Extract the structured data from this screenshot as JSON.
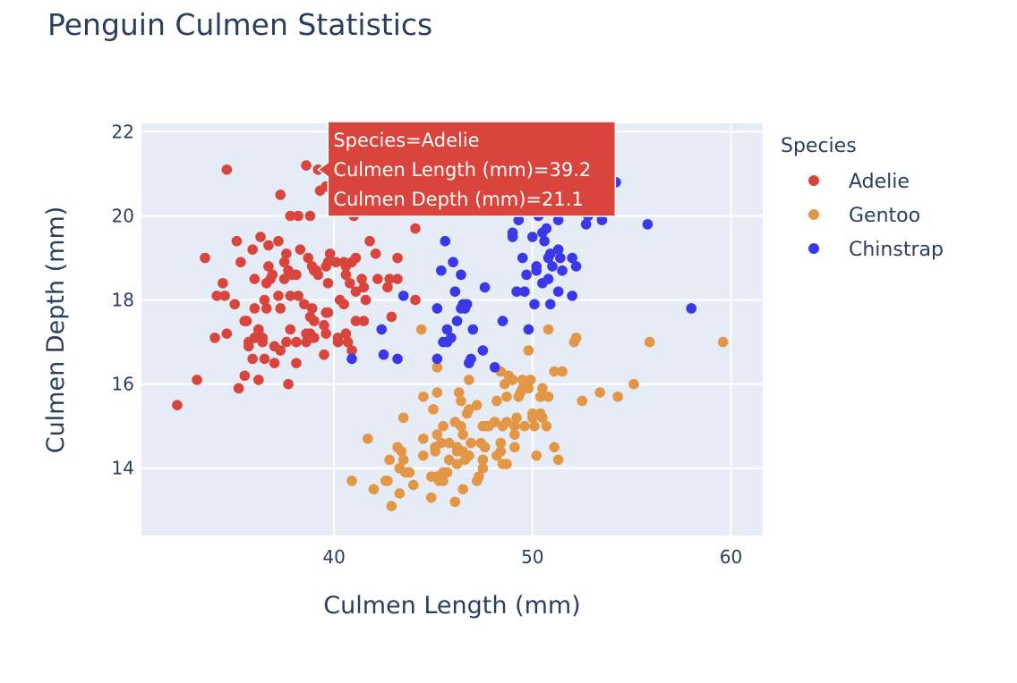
{
  "chart_data": {
    "type": "scatter",
    "title": "Penguin Culmen Statistics",
    "xlabel": "Culmen Length (mm)",
    "ylabel": "Culmen Depth (mm)",
    "xlim": [
      30.3,
      61.6
    ],
    "ylim": [
      12.4,
      22.2
    ],
    "x_ticks": [
      40,
      50,
      60
    ],
    "y_ticks": [
      14,
      16,
      18,
      20,
      22
    ],
    "grid": true,
    "legend": {
      "title": "Species",
      "placement": "right"
    },
    "series": [
      {
        "name": "Adelie",
        "color": "#d9443c",
        "points": [
          [
            32.1,
            15.5
          ],
          [
            33.1,
            16.1
          ],
          [
            33.5,
            19.0
          ],
          [
            34.0,
            17.1
          ],
          [
            34.1,
            18.1
          ],
          [
            34.4,
            18.4
          ],
          [
            34.5,
            18.1
          ],
          [
            34.6,
            21.1
          ],
          [
            34.6,
            17.2
          ],
          [
            35.0,
            17.9
          ],
          [
            35.1,
            19.4
          ],
          [
            35.2,
            15.9
          ],
          [
            35.3,
            18.9
          ],
          [
            35.5,
            16.2
          ],
          [
            35.5,
            17.5
          ],
          [
            35.6,
            17.5
          ],
          [
            35.7,
            16.9
          ],
          [
            35.7,
            17.0
          ],
          [
            35.9,
            16.6
          ],
          [
            35.9,
            19.2
          ],
          [
            36.0,
            17.1
          ],
          [
            36.0,
            17.8
          ],
          [
            36.0,
            18.5
          ],
          [
            36.2,
            16.1
          ],
          [
            36.2,
            17.2
          ],
          [
            36.2,
            17.3
          ],
          [
            36.3,
            19.5
          ],
          [
            36.4,
            17.0
          ],
          [
            36.4,
            17.1
          ],
          [
            36.5,
            16.6
          ],
          [
            36.5,
            18.0
          ],
          [
            36.6,
            17.8
          ],
          [
            36.6,
            18.4
          ],
          [
            36.7,
            18.8
          ],
          [
            36.7,
            19.3
          ],
          [
            36.8,
            18.5
          ],
          [
            36.9,
            18.6
          ],
          [
            37.0,
            16.5
          ],
          [
            37.0,
            16.9
          ],
          [
            37.2,
            18.1
          ],
          [
            37.2,
            19.4
          ],
          [
            37.3,
            16.8
          ],
          [
            37.3,
            17.8
          ],
          [
            37.3,
            20.5
          ],
          [
            37.5,
            18.5
          ],
          [
            37.5,
            18.9
          ],
          [
            37.6,
            17.0
          ],
          [
            37.6,
            19.1
          ],
          [
            37.7,
            16.0
          ],
          [
            37.7,
            18.7
          ],
          [
            37.8,
            17.3
          ],
          [
            37.8,
            18.1
          ],
          [
            37.8,
            20.0
          ],
          [
            37.9,
            18.6
          ],
          [
            38.1,
            16.5
          ],
          [
            38.1,
            17.0
          ],
          [
            38.1,
            18.6
          ],
          [
            38.2,
            18.1
          ],
          [
            38.2,
            20.0
          ],
          [
            38.3,
            19.2
          ],
          [
            38.5,
            17.9
          ],
          [
            38.6,
            17.0
          ],
          [
            38.6,
            17.2
          ],
          [
            38.6,
            21.2
          ],
          [
            38.7,
            19.0
          ],
          [
            38.8,
            17.2
          ],
          [
            38.8,
            17.6
          ],
          [
            38.8,
            20.0
          ],
          [
            38.9,
            17.8
          ],
          [
            38.9,
            18.8
          ],
          [
            39.0,
            17.1
          ],
          [
            39.0,
            17.5
          ],
          [
            39.0,
            18.7
          ],
          [
            39.1,
            18.7
          ],
          [
            39.2,
            18.6
          ],
          [
            39.2,
            21.1
          ],
          [
            39.3,
            20.6
          ],
          [
            39.5,
            16.7
          ],
          [
            39.5,
            17.4
          ],
          [
            39.6,
            17.2
          ],
          [
            39.6,
            17.7
          ],
          [
            39.6,
            18.8
          ],
          [
            39.6,
            20.7
          ],
          [
            39.7,
            17.7
          ],
          [
            39.7,
            18.4
          ],
          [
            39.7,
            18.9
          ],
          [
            39.8,
            19.1
          ],
          [
            40.1,
            18.9
          ],
          [
            40.2,
            17.0
          ],
          [
            40.2,
            17.1
          ],
          [
            40.2,
            20.1
          ],
          [
            40.3,
            18.0
          ],
          [
            40.5,
            17.9
          ],
          [
            40.5,
            18.9
          ],
          [
            40.6,
            17.2
          ],
          [
            40.6,
            18.6
          ],
          [
            40.6,
            18.8
          ],
          [
            40.7,
            17.0
          ],
          [
            40.8,
            18.4
          ],
          [
            40.9,
            16.8
          ],
          [
            40.9,
            18.9
          ],
          [
            41.0,
            20.0
          ],
          [
            41.1,
            17.5
          ],
          [
            41.1,
            18.2
          ],
          [
            41.1,
            19.0
          ],
          [
            41.3,
            20.3
          ],
          [
            41.4,
            18.5
          ],
          [
            41.5,
            17.5
          ],
          [
            41.5,
            18.3
          ],
          [
            41.6,
            18.0
          ],
          [
            41.8,
            19.4
          ],
          [
            42.0,
            20.2
          ],
          [
            42.1,
            19.1
          ],
          [
            42.2,
            18.5
          ],
          [
            42.3,
            21.2
          ],
          [
            42.5,
            20.7
          ],
          [
            42.7,
            18.3
          ],
          [
            42.8,
            18.5
          ],
          [
            42.9,
            17.6
          ],
          [
            43.2,
            18.5
          ],
          [
            43.2,
            19.0
          ],
          [
            44.1,
            18.0
          ],
          [
            44.1,
            19.7
          ],
          [
            45.6,
            20.3
          ],
          [
            46.0,
            21.5
          ]
        ]
      },
      {
        "name": "Gentoo",
        "color": "#e29646",
        "points": [
          [
            40.9,
            13.7
          ],
          [
            41.7,
            14.7
          ],
          [
            42.0,
            13.5
          ],
          [
            42.6,
            13.7
          ],
          [
            42.7,
            13.7
          ],
          [
            42.8,
            14.2
          ],
          [
            42.9,
            13.1
          ],
          [
            43.2,
            14.5
          ],
          [
            43.3,
            13.4
          ],
          [
            43.3,
            14.0
          ],
          [
            43.4,
            14.4
          ],
          [
            43.5,
            14.2
          ],
          [
            43.5,
            15.2
          ],
          [
            43.6,
            13.9
          ],
          [
            43.8,
            13.9
          ],
          [
            44.0,
            13.6
          ],
          [
            44.4,
            17.3
          ],
          [
            44.5,
            14.3
          ],
          [
            44.5,
            14.7
          ],
          [
            44.5,
            15.7
          ],
          [
            44.9,
            13.3
          ],
          [
            44.9,
            13.8
          ],
          [
            45.0,
            15.4
          ],
          [
            45.1,
            14.4
          ],
          [
            45.1,
            14.5
          ],
          [
            45.2,
            13.8
          ],
          [
            45.2,
            14.8
          ],
          [
            45.2,
            15.8
          ],
          [
            45.2,
            16.4
          ],
          [
            45.3,
            13.7
          ],
          [
            45.4,
            14.6
          ],
          [
            45.5,
            13.7
          ],
          [
            45.5,
            13.9
          ],
          [
            45.5,
            15.0
          ],
          [
            45.7,
            13.9
          ],
          [
            45.8,
            14.2
          ],
          [
            45.8,
            14.6
          ],
          [
            46.1,
            13.2
          ],
          [
            46.1,
            15.1
          ],
          [
            46.2,
            14.1
          ],
          [
            46.2,
            14.4
          ],
          [
            46.2,
            14.5
          ],
          [
            46.3,
            15.8
          ],
          [
            46.4,
            15.0
          ],
          [
            46.4,
            15.6
          ],
          [
            46.5,
            13.5
          ],
          [
            46.5,
            14.4
          ],
          [
            46.5,
            14.8
          ],
          [
            46.6,
            14.2
          ],
          [
            46.7,
            15.3
          ],
          [
            46.8,
            14.3
          ],
          [
            46.8,
            15.4
          ],
          [
            46.8,
            16.1
          ],
          [
            46.9,
            14.6
          ],
          [
            47.2,
            13.7
          ],
          [
            47.2,
            15.5
          ],
          [
            47.3,
            13.8
          ],
          [
            47.4,
            14.6
          ],
          [
            47.5,
            14.0
          ],
          [
            47.5,
            14.2
          ],
          [
            47.5,
            15.0
          ],
          [
            47.6,
            14.5
          ],
          [
            47.7,
            15.0
          ],
          [
            47.8,
            15.0
          ],
          [
            48.1,
            15.1
          ],
          [
            48.2,
            14.3
          ],
          [
            48.2,
            15.6
          ],
          [
            48.4,
            14.4
          ],
          [
            48.4,
            14.6
          ],
          [
            48.4,
            16.3
          ],
          [
            48.5,
            14.1
          ],
          [
            48.5,
            15.0
          ],
          [
            48.6,
            16.0
          ],
          [
            48.7,
            14.1
          ],
          [
            48.7,
            15.1
          ],
          [
            48.7,
            15.7
          ],
          [
            48.8,
            16.2
          ],
          [
            49.0,
            16.1
          ],
          [
            49.1,
            14.5
          ],
          [
            49.1,
            14.8
          ],
          [
            49.1,
            15.0
          ],
          [
            49.2,
            15.2
          ],
          [
            49.3,
            15.7
          ],
          [
            49.4,
            15.8
          ],
          [
            49.5,
            15.9
          ],
          [
            49.5,
            16.1
          ],
          [
            49.6,
            15.0
          ],
          [
            49.6,
            16.0
          ],
          [
            49.8,
            15.9
          ],
          [
            49.8,
            16.8
          ],
          [
            49.9,
            16.1
          ],
          [
            50.0,
            15.2
          ],
          [
            50.0,
            15.3
          ],
          [
            50.1,
            15.0
          ],
          [
            50.2,
            14.3
          ],
          [
            50.4,
            15.3
          ],
          [
            50.4,
            15.7
          ],
          [
            50.5,
            15.2
          ],
          [
            50.5,
            15.9
          ],
          [
            50.7,
            15.0
          ],
          [
            50.8,
            15.7
          ],
          [
            50.8,
            17.3
          ],
          [
            51.1,
            14.5
          ],
          [
            51.1,
            16.3
          ],
          [
            51.3,
            14.2
          ],
          [
            51.5,
            16.3
          ],
          [
            52.1,
            17.0
          ],
          [
            52.2,
            17.1
          ],
          [
            52.5,
            15.6
          ],
          [
            53.4,
            15.8
          ],
          [
            54.3,
            15.7
          ],
          [
            55.1,
            16.0
          ],
          [
            55.9,
            17.0
          ],
          [
            59.6,
            17.0
          ]
        ]
      },
      {
        "name": "Chinstrap",
        "color": "#3a38e8",
        "points": [
          [
            40.9,
            16.6
          ],
          [
            42.4,
            17.3
          ],
          [
            42.5,
            16.7
          ],
          [
            43.2,
            16.6
          ],
          [
            43.5,
            18.1
          ],
          [
            45.2,
            16.6
          ],
          [
            45.2,
            17.8
          ],
          [
            45.4,
            18.7
          ],
          [
            45.5,
            17.0
          ],
          [
            45.6,
            19.4
          ],
          [
            45.7,
            17.0
          ],
          [
            45.7,
            17.3
          ],
          [
            45.9,
            17.1
          ],
          [
            46.0,
            18.9
          ],
          [
            46.1,
            18.2
          ],
          [
            46.2,
            17.5
          ],
          [
            46.4,
            17.8
          ],
          [
            46.4,
            18.6
          ],
          [
            46.5,
            17.9
          ],
          [
            46.6,
            17.8
          ],
          [
            46.7,
            17.9
          ],
          [
            46.8,
            16.5
          ],
          [
            46.9,
            16.6
          ],
          [
            47.0,
            17.3
          ],
          [
            47.5,
            16.8
          ],
          [
            47.6,
            18.3
          ],
          [
            48.1,
            16.4
          ],
          [
            48.5,
            17.5
          ],
          [
            49.0,
            19.5
          ],
          [
            49.0,
            19.6
          ],
          [
            49.2,
            18.2
          ],
          [
            49.3,
            19.9
          ],
          [
            49.5,
            19.0
          ],
          [
            49.6,
            18.2
          ],
          [
            49.7,
            18.6
          ],
          [
            49.8,
            17.3
          ],
          [
            50.0,
            19.5
          ],
          [
            50.1,
            17.9
          ],
          [
            50.2,
            18.7
          ],
          [
            50.2,
            18.8
          ],
          [
            50.3,
            20.0
          ],
          [
            50.5,
            18.4
          ],
          [
            50.5,
            19.6
          ],
          [
            50.6,
            19.4
          ],
          [
            50.7,
            19.7
          ],
          [
            50.8,
            18.5
          ],
          [
            50.8,
            19.0
          ],
          [
            50.9,
            17.9
          ],
          [
            50.9,
            19.1
          ],
          [
            51.0,
            18.8
          ],
          [
            51.3,
            18.2
          ],
          [
            51.3,
            19.2
          ],
          [
            51.3,
            19.9
          ],
          [
            51.4,
            19.0
          ],
          [
            51.5,
            18.7
          ],
          [
            52.0,
            18.1
          ],
          [
            52.0,
            19.0
          ],
          [
            52.2,
            18.8
          ],
          [
            52.7,
            19.8
          ],
          [
            52.8,
            20.0
          ],
          [
            53.5,
            19.9
          ],
          [
            54.2,
            20.8
          ],
          [
            55.8,
            19.8
          ],
          [
            58.0,
            17.8
          ]
        ]
      }
    ],
    "hover_label": {
      "lines": [
        "Species=Adelie",
        "Culmen Length (mm)=39.2",
        "Culmen Depth (mm)=21.1"
      ],
      "point": [
        39.2,
        21.1
      ],
      "color": "#d9443c"
    }
  }
}
